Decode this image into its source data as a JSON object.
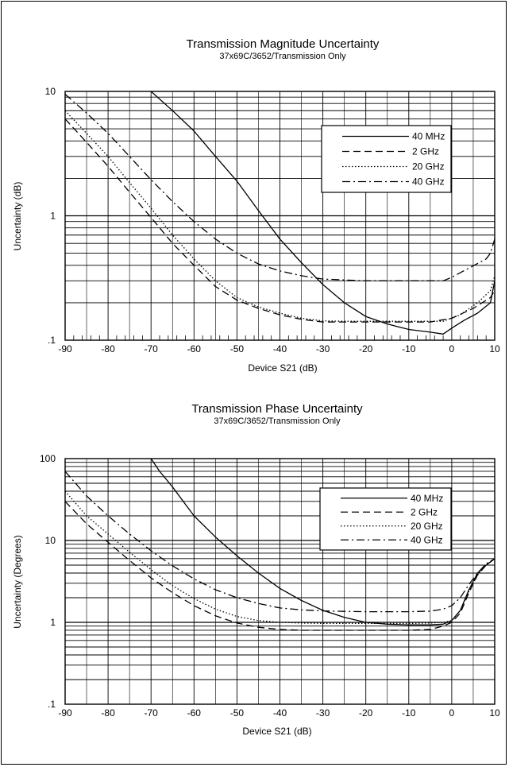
{
  "chart_data": [
    {
      "type": "line",
      "title": "Transmission Magnitude Uncertainty",
      "subtitle": "37x69C/3652/Transmission Only",
      "xlabel": "Device S21 (dB)",
      "ylabel": "Uncertainty (dB)",
      "xlim": [
        -90,
        10
      ],
      "ylim": [
        0.1,
        10
      ],
      "yscale": "log",
      "grid": true,
      "legend_position": "top-right",
      "xticks": [
        "-90",
        "-80",
        "-70",
        "-60",
        "-50",
        "-40",
        "-30",
        "-20",
        "-10",
        "0",
        "10"
      ],
      "yticks": [
        ".1",
        "1",
        "10"
      ],
      "series": [
        {
          "name": "40 MHz",
          "style": "solid",
          "x": [
            -70,
            -65,
            -60,
            -55,
            -50,
            -45,
            -40,
            -35,
            -30,
            -25,
            -20,
            -15,
            -10,
            -5,
            -2,
            0,
            3,
            6,
            9,
            10
          ],
          "y": [
            10,
            7,
            4.8,
            3.0,
            1.9,
            1.1,
            0.65,
            0.42,
            0.28,
            0.2,
            0.155,
            0.135,
            0.122,
            0.116,
            0.112,
            0.125,
            0.145,
            0.165,
            0.2,
            0.3
          ]
        },
        {
          "name": "2 GHz",
          "style": "dashed",
          "x": [
            -90,
            -85,
            -80,
            -75,
            -70,
            -65,
            -60,
            -55,
            -50,
            -45,
            -40,
            -35,
            -30,
            -25,
            -20,
            -15,
            -10,
            -5,
            0,
            5,
            9,
            10
          ],
          "y": [
            6.0,
            3.9,
            2.5,
            1.55,
            0.97,
            0.6,
            0.4,
            0.27,
            0.21,
            0.18,
            0.16,
            0.147,
            0.14,
            0.14,
            0.14,
            0.14,
            0.14,
            0.14,
            0.15,
            0.18,
            0.22,
            0.25
          ]
        },
        {
          "name": "20 GHz",
          "style": "dotted",
          "x": [
            -90,
            -85,
            -80,
            -75,
            -70,
            -65,
            -60,
            -55,
            -50,
            -45,
            -40,
            -35,
            -30,
            -25,
            -20,
            -15,
            -10,
            -5,
            -2,
            2,
            6,
            9,
            10
          ],
          "y": [
            7.0,
            4.6,
            3.0,
            1.85,
            1.15,
            0.7,
            0.45,
            0.3,
            0.22,
            0.185,
            0.165,
            0.15,
            0.143,
            0.142,
            0.142,
            0.142,
            0.142,
            0.142,
            0.142,
            0.16,
            0.2,
            0.25,
            0.33
          ]
        },
        {
          "name": "40 GHz",
          "style": "dashdot",
          "x": [
            -90,
            -85,
            -80,
            -75,
            -70,
            -65,
            -60,
            -55,
            -50,
            -45,
            -40,
            -35,
            -30,
            -25,
            -20,
            -15,
            -10,
            -5,
            -2,
            0,
            4,
            8,
            9,
            10
          ],
          "y": [
            9.5,
            6.7,
            4.6,
            3.0,
            1.95,
            1.3,
            0.9,
            0.65,
            0.5,
            0.41,
            0.36,
            0.33,
            0.31,
            0.305,
            0.3,
            0.3,
            0.3,
            0.3,
            0.3,
            0.32,
            0.38,
            0.45,
            0.5,
            0.65
          ]
        }
      ]
    },
    {
      "type": "line",
      "title": "Transmission Phase Uncertainty",
      "subtitle": "37x69C/3652/Transmission Only",
      "xlabel": "Device S21 (dB)",
      "ylabel": "Uncertainty (Degrees)",
      "xlim": [
        -90,
        10
      ],
      "ylim": [
        0.1,
        100
      ],
      "yscale": "log",
      "grid": true,
      "legend_position": "top-right",
      "xticks": [
        "-90",
        "-80",
        "-70",
        "-60",
        "-50",
        "-40",
        "-30",
        "-20",
        "-10",
        "0",
        "10"
      ],
      "yticks": [
        ".1",
        "1",
        "10",
        "100"
      ],
      "series": [
        {
          "name": "40 MHz",
          "style": "solid",
          "x": [
            -70,
            -68,
            -65,
            -60,
            -55,
            -50,
            -45,
            -40,
            -35,
            -30,
            -25,
            -20,
            -15,
            -10,
            -5,
            -2,
            0,
            2,
            4,
            6,
            8,
            10
          ],
          "y": [
            100,
            70,
            45,
            20,
            11,
            6.5,
            4.0,
            2.6,
            1.85,
            1.4,
            1.15,
            1.0,
            0.95,
            0.93,
            0.93,
            0.95,
            1.05,
            1.4,
            2.5,
            4.0,
            5.0,
            6.0
          ]
        },
        {
          "name": "2 GHz",
          "style": "dashed",
          "x": [
            -90,
            -85,
            -80,
            -75,
            -70,
            -65,
            -60,
            -55,
            -50,
            -45,
            -40,
            -35,
            -30,
            -25,
            -20,
            -15,
            -10,
            -5,
            -2,
            0,
            2,
            4,
            6,
            8,
            10
          ],
          "y": [
            30,
            16,
            9.5,
            5.7,
            3.5,
            2.3,
            1.6,
            1.2,
            0.98,
            0.87,
            0.82,
            0.8,
            0.8,
            0.8,
            0.8,
            0.8,
            0.8,
            0.82,
            0.9,
            1.0,
            1.3,
            2.3,
            3.8,
            5.0,
            6.0
          ]
        },
        {
          "name": "20 GHz",
          "style": "dotted",
          "x": [
            -90,
            -85,
            -80,
            -75,
            -70,
            -65,
            -60,
            -55,
            -50,
            -45,
            -40,
            -35,
            -30,
            -25,
            -20,
            -15,
            -10,
            -5,
            -2,
            0,
            2,
            4,
            6,
            8,
            10
          ],
          "y": [
            40,
            20,
            12,
            7.2,
            4.4,
            2.8,
            1.95,
            1.45,
            1.18,
            1.05,
            1.0,
            0.98,
            0.97,
            0.97,
            0.97,
            0.97,
            0.97,
            0.98,
            1.0,
            1.05,
            1.4,
            2.4,
            3.8,
            5.0,
            6.0
          ]
        },
        {
          "name": "40 GHz",
          "style": "dashdot",
          "x": [
            -90,
            -85,
            -80,
            -75,
            -70,
            -65,
            -60,
            -55,
            -50,
            -45,
            -40,
            -35,
            -30,
            -25,
            -20,
            -15,
            -10,
            -5,
            -2,
            0,
            2,
            4,
            6,
            8,
            10
          ],
          "y": [
            70,
            35,
            20,
            12,
            7.5,
            4.9,
            3.4,
            2.5,
            2.0,
            1.7,
            1.5,
            1.42,
            1.38,
            1.36,
            1.35,
            1.35,
            1.35,
            1.37,
            1.45,
            1.6,
            2.0,
            2.9,
            4.0,
            5.2,
            6.0
          ]
        }
      ]
    }
  ]
}
